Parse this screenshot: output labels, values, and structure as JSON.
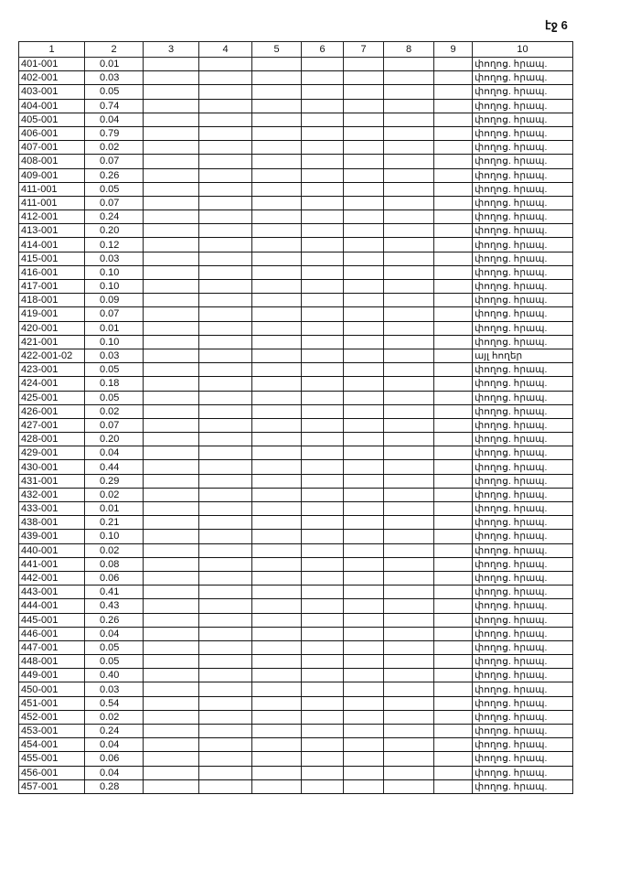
{
  "page_label": "էջ 6",
  "headers": [
    "1",
    "2",
    "3",
    "4",
    "5",
    "6",
    "7",
    "8",
    "9",
    "10"
  ],
  "rows": [
    [
      "401-001",
      "0.01",
      "փողոց. հրապ."
    ],
    [
      "402-001",
      "0.03",
      "փողոց. հրապ."
    ],
    [
      "403-001",
      "0.05",
      "փողոց. հրապ."
    ],
    [
      "404-001",
      "0.74",
      "փողոց. հրապ."
    ],
    [
      "405-001",
      "0.04",
      "փողոց. հրապ."
    ],
    [
      "406-001",
      "0.79",
      "փողոց. հրապ."
    ],
    [
      "407-001",
      "0.02",
      "փողոց. հրապ."
    ],
    [
      "408-001",
      "0.07",
      "փողոց. հրապ."
    ],
    [
      "409-001",
      "0.26",
      "փողոց. հրապ."
    ],
    [
      "411-001",
      "0.05",
      "փողոց. հրապ."
    ],
    [
      "411-001",
      "0.07",
      "փողոց. հրապ."
    ],
    [
      "412-001",
      "0.24",
      "փողոց. հրապ."
    ],
    [
      "413-001",
      "0.20",
      "փողոց. հրապ."
    ],
    [
      "414-001",
      "0.12",
      "փողոց. հրապ."
    ],
    [
      "415-001",
      "0.03",
      "փողոց. հրապ."
    ],
    [
      "416-001",
      "0.10",
      "փողոց. հրապ."
    ],
    [
      "417-001",
      "0.10",
      "փողոց. հրապ."
    ],
    [
      "418-001",
      "0.09",
      "փողոց. հրապ."
    ],
    [
      "419-001",
      "0.07",
      "փողոց. հրապ."
    ],
    [
      "420-001",
      "0.01",
      "փողոց. հրապ."
    ],
    [
      "421-001",
      "0.10",
      "փողոց. հրապ."
    ],
    [
      "422-001-02",
      "0.03",
      "այլ հողեր"
    ],
    [
      "423-001",
      "0.05",
      "փողոց. հրապ."
    ],
    [
      "424-001",
      "0.18",
      "փողոց. հրապ."
    ],
    [
      "425-001",
      "0.05",
      "փողոց. հրապ."
    ],
    [
      "426-001",
      "0.02",
      "փողոց. հրապ."
    ],
    [
      "427-001",
      "0.07",
      "փողոց. հրապ."
    ],
    [
      "428-001",
      "0.20",
      "փողոց. հրապ."
    ],
    [
      "429-001",
      "0.04",
      "փողոց. հրապ."
    ],
    [
      "430-001",
      "0.44",
      "փողոց. հրապ."
    ],
    [
      "431-001",
      "0.29",
      "փողոց. հրապ."
    ],
    [
      "432-001",
      "0.02",
      "փողոց. հրապ."
    ],
    [
      "433-001",
      "0.01",
      "փողոց. հրապ."
    ],
    [
      "438-001",
      "0.21",
      "փողոց. հրապ."
    ],
    [
      "439-001",
      "0.10",
      "փողոց. հրապ."
    ],
    [
      "440-001",
      "0.02",
      "փողոց. հրապ."
    ],
    [
      "441-001",
      "0.08",
      "փողոց. հրապ."
    ],
    [
      "442-001",
      "0.06",
      "փողոց. հրապ."
    ],
    [
      "443-001",
      "0.41",
      "փողոց. հրապ."
    ],
    [
      "444-001",
      "0.43",
      "փողոց. հրապ."
    ],
    [
      "445-001",
      "0.26",
      "փողոց. հրապ."
    ],
    [
      "446-001",
      "0.04",
      "փողոց. հրապ."
    ],
    [
      "447-001",
      "0.05",
      "փողոց. հրապ."
    ],
    [
      "448-001",
      "0.05",
      "փողոց. հրապ."
    ],
    [
      "449-001",
      "0.40",
      "փողոց. հրապ."
    ],
    [
      "450-001",
      "0.03",
      "փողոց. հրապ."
    ],
    [
      "451-001",
      "0.54",
      "փողոց. հրապ."
    ],
    [
      "452-001",
      "0.02",
      "փողոց. հրապ."
    ],
    [
      "453-001",
      "0.24",
      "փողոց. հրապ."
    ],
    [
      "454-001",
      "0.04",
      "փողոց. հրապ."
    ],
    [
      "455-001",
      "0.06",
      "փողոց. հրապ."
    ],
    [
      "456-001",
      "0.04",
      "փողոց. հրապ."
    ],
    [
      "457-001",
      "0.28",
      "փողոց. հրապ."
    ]
  ]
}
